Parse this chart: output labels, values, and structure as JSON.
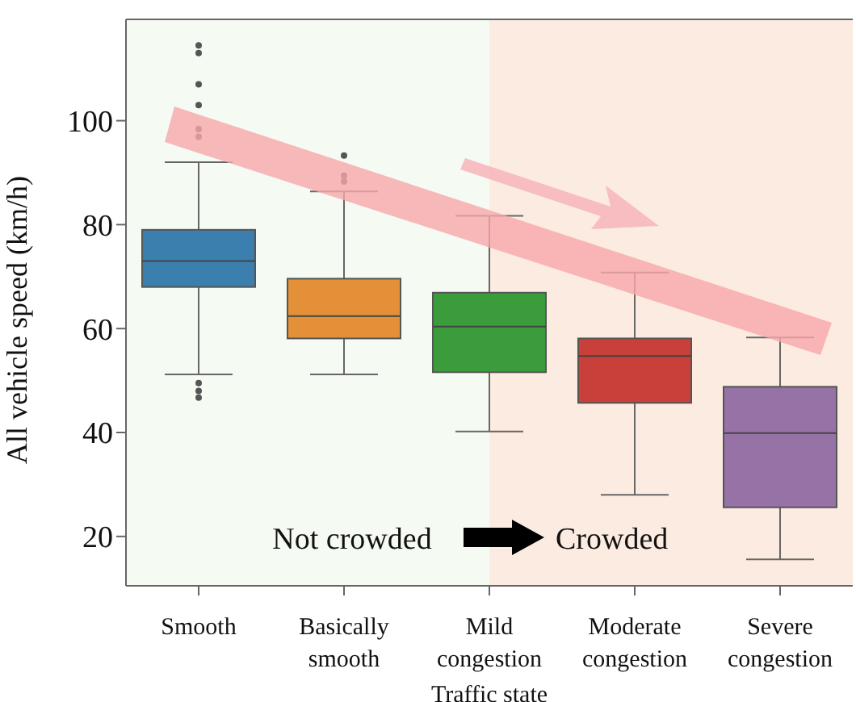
{
  "chart_data": {
    "type": "box",
    "xlabel": "Traffic state",
    "ylabel": "All vehicle speed (km/h)",
    "categories": [
      "Smooth",
      "Basically smooth",
      "Mild congestion",
      "Moderate congestion",
      "Severe congestion"
    ],
    "colors": [
      "#3a7fae",
      "#e39038",
      "#3a9c3a",
      "#c9403a",
      "#9672a6"
    ],
    "boxes": [
      {
        "low": 51.2,
        "q1": 68,
        "median": 73,
        "q3": 79,
        "high": 92,
        "outliers": [
          114.5,
          113,
          107,
          103,
          98.4,
          96.9,
          49.5,
          48,
          46.7
        ]
      },
      {
        "low": 51.2,
        "q1": 58.1,
        "median": 62.4,
        "q3": 69.6,
        "high": 86.4,
        "outliers": [
          93.3,
          89.4,
          88.3
        ]
      },
      {
        "low": 40.2,
        "q1": 51.6,
        "median": 60.4,
        "q3": 66.9,
        "high": 81.7
      },
      {
        "low": 28,
        "q1": 45.7,
        "median": 54.7,
        "q3": 58.1,
        "high": 70.8
      },
      {
        "low": 15.6,
        "q1": 25.6,
        "median": 39.9,
        "q3": 48.8,
        "high": 58.3
      }
    ],
    "ylim": [
      10.5,
      119.5
    ],
    "yticks": [
      20,
      40,
      60,
      80,
      100
    ],
    "bands": [
      {
        "axis": "x",
        "from": "Smooth",
        "to": "Mild congestion",
        "color": "#f5fbf3"
      },
      {
        "axis": "x",
        "from": "Mild congestion",
        "to": "Severe congestion",
        "color": "#fcebe0"
      }
    ],
    "annotations": [
      "Not crowded",
      "Crowded"
    ]
  }
}
